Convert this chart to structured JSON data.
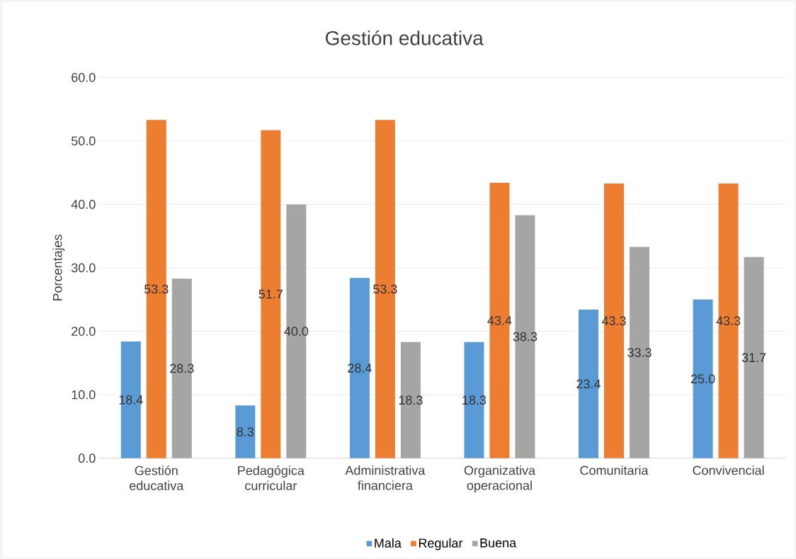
{
  "chart_data": {
    "type": "bar",
    "title": "Gestión educativa",
    "ylabel": "Porcentajes",
    "categories": [
      "Gestión educativa",
      "Pedagógica curricular",
      "Administrativa financiera",
      "Organizativa operacional",
      "Comunitaria",
      "Convivencial"
    ],
    "series": [
      {
        "name": "Mala",
        "color": "#5b9bd5",
        "values": [
          18.4,
          8.3,
          28.4,
          18.3,
          23.4,
          25.0
        ],
        "value_labels": [
          "18.4",
          "8.3",
          "28.4",
          "18.3",
          "23.4",
          "25.0"
        ]
      },
      {
        "name": "Regular",
        "color": "#ed7d31",
        "values": [
          53.3,
          51.7,
          53.3,
          43.4,
          43.3,
          43.3
        ],
        "value_labels": [
          "53.3",
          "51.7",
          "53.3",
          "43.4",
          "43.3",
          "43.3"
        ]
      },
      {
        "name": "Buena",
        "color": "#a5a5a5",
        "values": [
          28.3,
          40.0,
          18.3,
          38.3,
          33.3,
          31.7
        ],
        "value_labels": [
          "28.3",
          "40.0",
          "18.3",
          "38.3",
          "33.3",
          "31.7"
        ]
      }
    ],
    "ylim": [
      0,
      60
    ],
    "yticks": [
      {
        "value": 0,
        "label": "0.0"
      },
      {
        "value": 10,
        "label": "10.0"
      },
      {
        "value": 20,
        "label": "20.0"
      },
      {
        "value": 30,
        "label": "30.0"
      },
      {
        "value": 40,
        "label": "40.0"
      },
      {
        "value": 50,
        "label": "50.0"
      },
      {
        "value": 60,
        "label": "60.0"
      }
    ],
    "grid": "y",
    "legend": "bottom"
  }
}
